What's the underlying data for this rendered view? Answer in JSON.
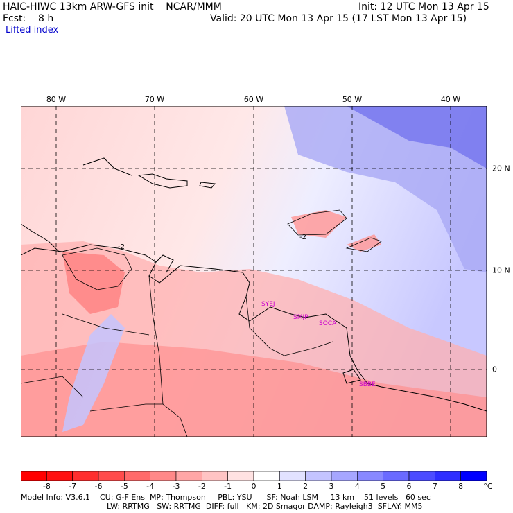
{
  "header": {
    "title": "HAIC-HIWC 13km ARW-GFS init    NCAR/MMM",
    "init": "Init: 12 UTC Mon 13 Apr 15",
    "fcst": "Fcst:    8 h",
    "valid": "Valid: 20 UTC Mon 13 Apr 15 (17 LST Mon 13 Apr 15)",
    "field": "Lifted index"
  },
  "axes": {
    "lon_labels": [
      "80 W",
      "70 W",
      "60 W",
      "50 W",
      "40 W"
    ],
    "lat_labels": [
      "20 N",
      "10 N",
      "0"
    ]
  },
  "contour_labels": [
    "-2",
    "-2"
  ],
  "stations": [
    "SYEJ",
    "SMJP",
    "SOCA",
    "SBBE"
  ],
  "colorbar": {
    "labels": [
      "-8",
      "-7",
      "-6",
      "-5",
      "-4",
      "-3",
      "-2",
      "-1",
      "0",
      "1",
      "2",
      "3",
      "4",
      "5",
      "6",
      "7",
      "8"
    ],
    "unit": "°C",
    "colors": [
      "#ff1010",
      "#ff2e2e",
      "#ff4c4c",
      "#ff6a6a",
      "#ff8888",
      "#ffa6a6",
      "#ffc4c4",
      "#ffe2e2",
      "#ffffff",
      "#e2e2ff",
      "#c4c4ff",
      "#a6a6ff",
      "#8888ff",
      "#6a6aff",
      "#4c4cff",
      "#2e2eff",
      "#1010ff"
    ]
  },
  "footer": {
    "line1": "Model Info: V3.6.1    CU: G-F Ens  MP: Thompson     PBL: YSU      SF: Noah LSM     13 km    51 levels   60 sec",
    "line2": "LW: RRTMG   SW: RRTMG  DIFF: full   KM: 2D Smagor DAMP: Rayleigh3  SFLAY: MM5"
  }
}
